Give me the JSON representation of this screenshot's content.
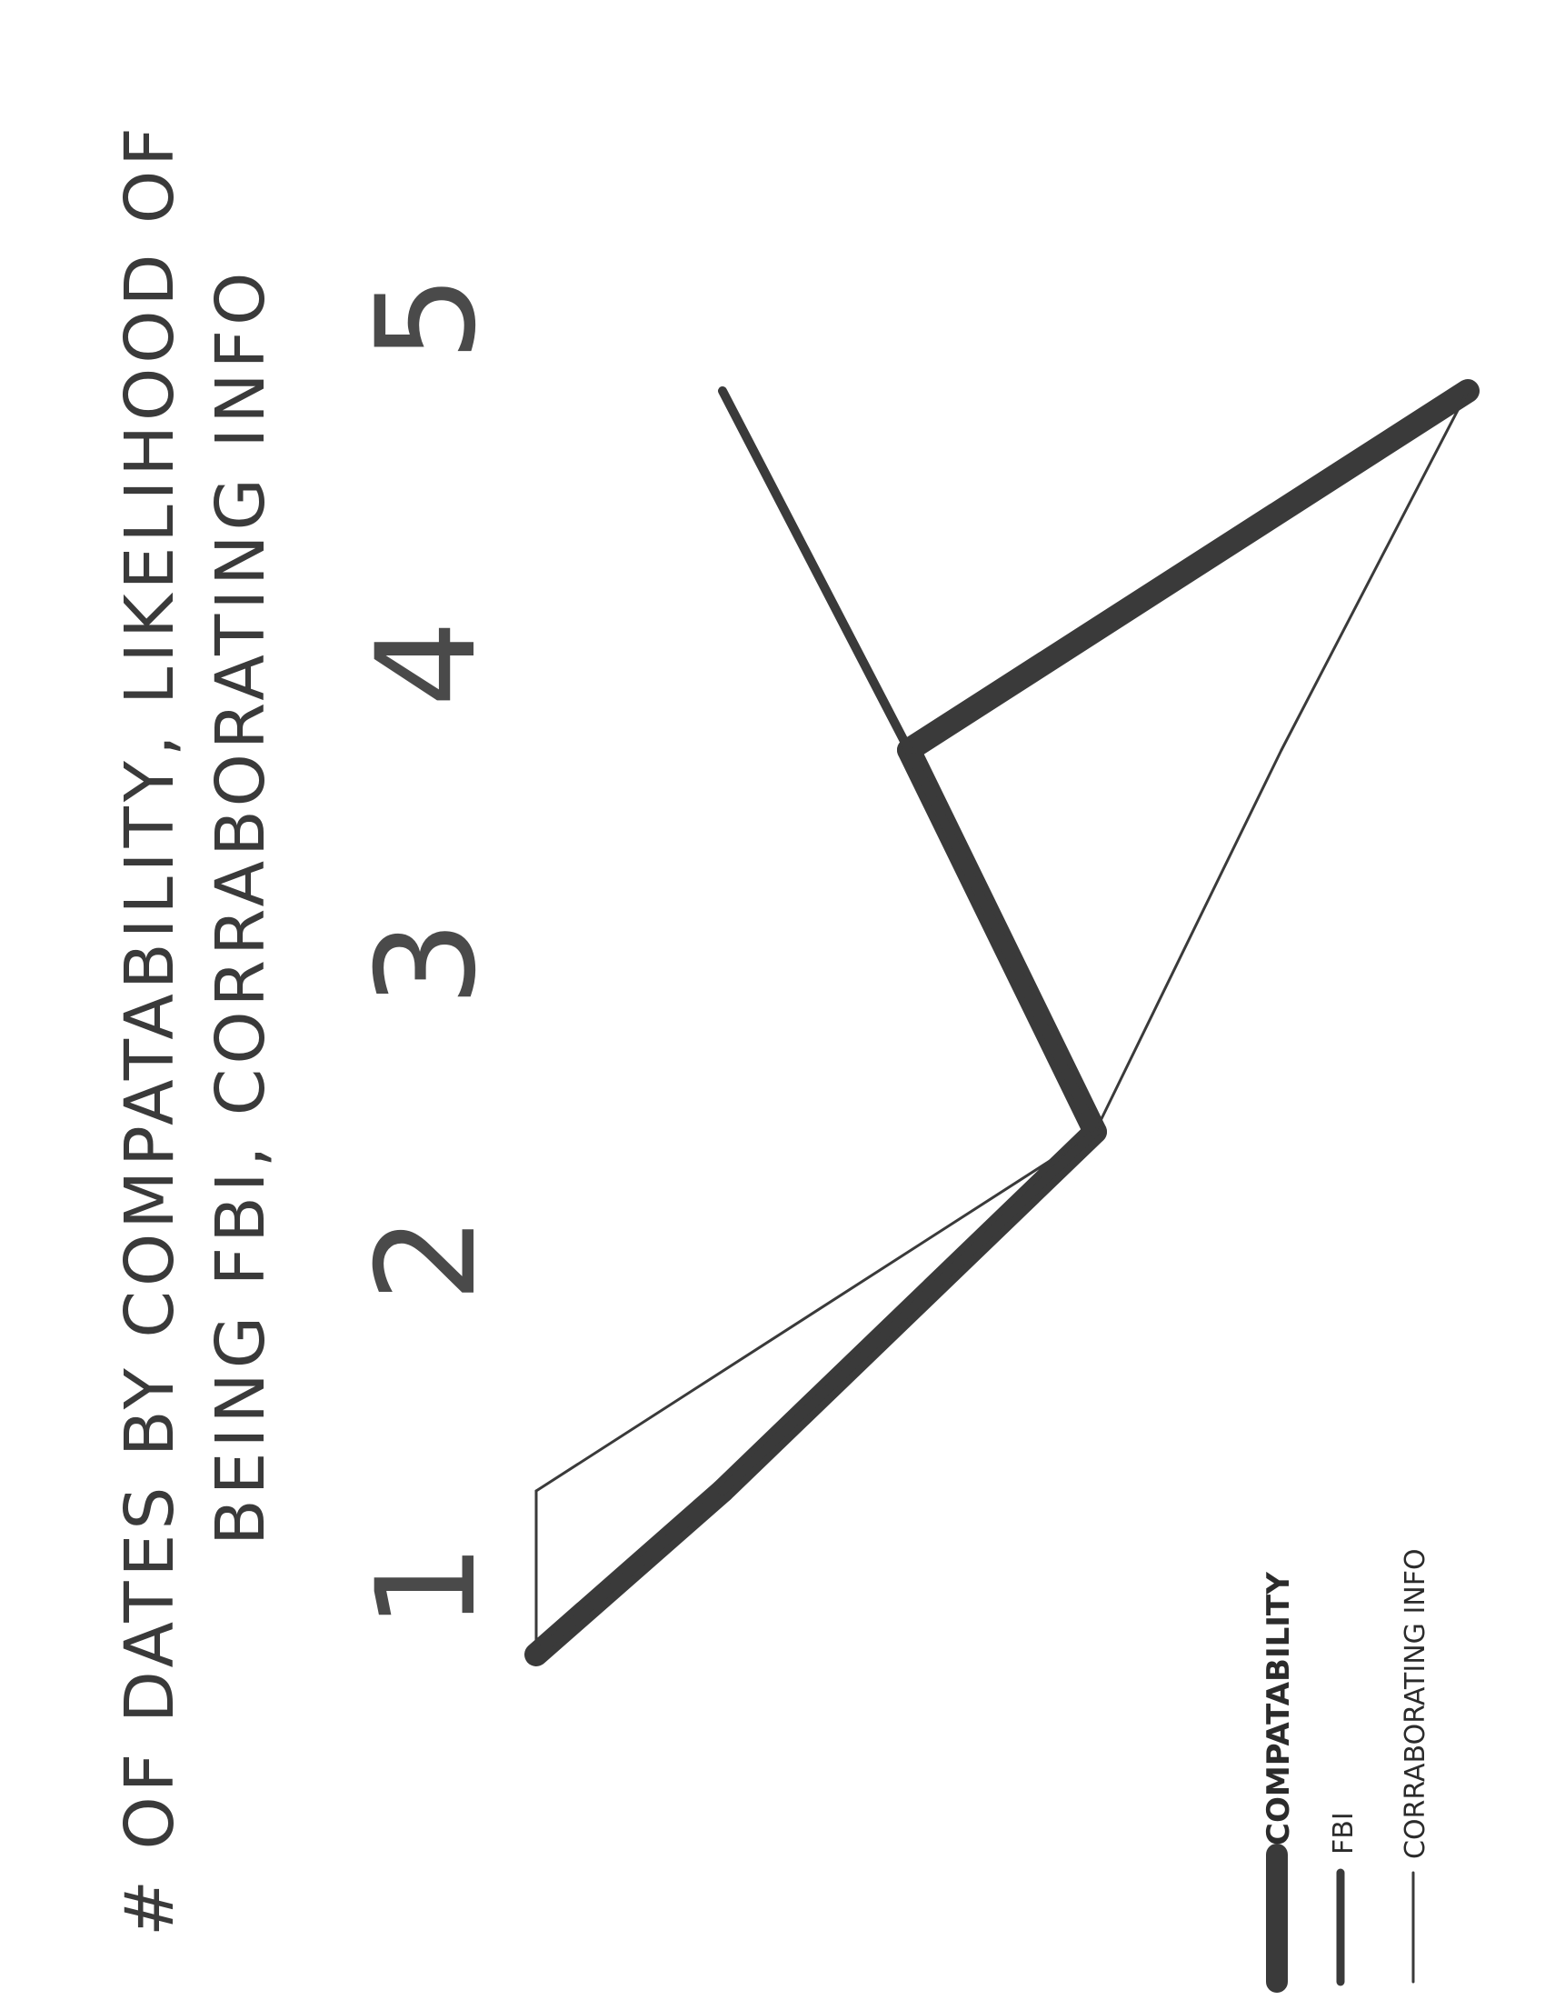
{
  "chart_data": {
    "type": "line",
    "title": "# OF DATES BY COMPATABILITY, LIKELIHOOD OF BEING FBI, CORRABORATING INFO",
    "title_lines": [
      "# OF DATES BY COMPATABILITY, LIKELIHOOD OF",
      "BEING FBI, CORRABORATING INFO"
    ],
    "x": [
      1,
      2,
      3,
      4,
      5
    ],
    "x_tick_labels": [
      "1",
      "2",
      "3",
      "4",
      "5"
    ],
    "orientation": "rotated-90-ccw",
    "legend_position": "bottom-left",
    "grid": false,
    "series": [
      {
        "name": "COMPATABILITY",
        "style": "thick",
        "values": [
          0,
          1,
          3,
          2,
          5
        ]
      },
      {
        "name": "FBI",
        "style": "medium",
        "values": [
          0,
          1,
          3,
          2,
          1
        ]
      },
      {
        "name": "CORRABORATING INFO",
        "style": "thin",
        "values": [
          0,
          0,
          3,
          4,
          5
        ]
      }
    ],
    "colors": {
      "ink": "#3a3a3a",
      "paper": "#ffffff"
    }
  }
}
